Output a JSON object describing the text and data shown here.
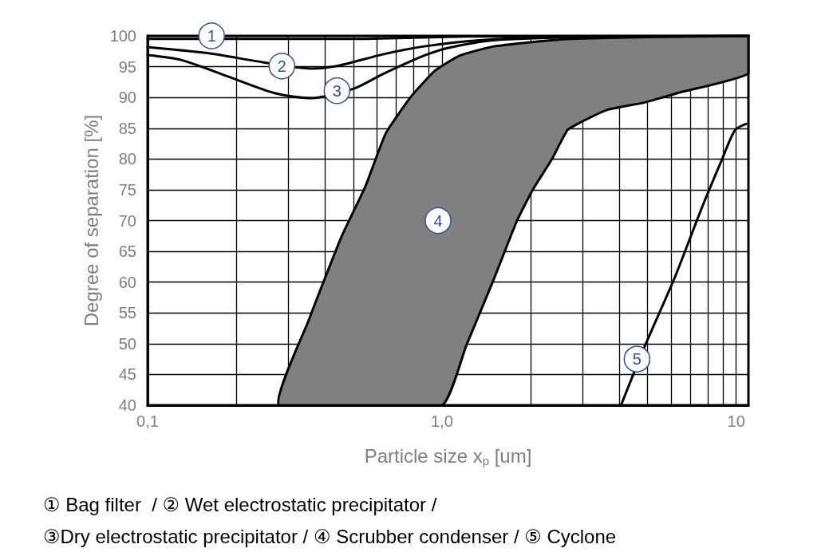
{
  "chart_data": {
    "type": "line",
    "xlabel": "Particle size x$_{p}$ [um]",
    "ylabel": "Degree of separation [%]",
    "log": "x",
    "grid": true,
    "marker": "none",
    "line_style": "solid",
    "xlim": [
      0.1,
      11
    ],
    "ylim": [
      40,
      100
    ],
    "xticks": [
      {
        "value": 0.1,
        "label": "0,1"
      },
      {
        "value": 0.2,
        "label": null
      },
      {
        "value": 0.3,
        "label": null
      },
      {
        "value": 0.4,
        "label": null
      },
      {
        "value": 0.5,
        "label": null
      },
      {
        "value": 0.6,
        "label": null
      },
      {
        "value": 0.7,
        "label": null
      },
      {
        "value": 0.8,
        "label": null
      },
      {
        "value": 0.9,
        "label": null
      },
      {
        "value": 1,
        "label": "1,0"
      },
      {
        "value": 2,
        "label": null
      },
      {
        "value": 3,
        "label": null
      },
      {
        "value": 4,
        "label": null
      },
      {
        "value": 5,
        "label": null
      },
      {
        "value": 6,
        "label": null
      },
      {
        "value": 7,
        "label": null
      },
      {
        "value": 8,
        "label": null
      },
      {
        "value": 9,
        "label": null
      },
      {
        "value": 10,
        "label": "10"
      }
    ],
    "yticks": [
      40,
      45,
      50,
      55,
      60,
      65,
      70,
      75,
      80,
      85,
      90,
      95,
      100
    ],
    "series": [
      {
        "color": "#000000",
        "x": [
          0.1,
          0.5,
          1.2,
          11
        ],
        "values": [
          99.5,
          99.5,
          99.9,
          100
        ]
      },
      {
        "color": "#000000",
        "x": [
          0.1,
          0.16,
          0.248,
          0.36,
          0.44,
          0.63,
          0.87,
          1.34,
          2.5,
          11
        ],
        "values": [
          98.2,
          97.2,
          95.7,
          94.7,
          95.1,
          97.0,
          98.3,
          99.3,
          99.8,
          100
        ]
      },
      {
        "color": "#000000",
        "x": [
          0.1,
          0.13,
          0.19,
          0.27,
          0.36,
          0.5,
          0.63,
          0.87,
          1.06,
          1.5,
          3,
          11
        ],
        "values": [
          96.9,
          96.1,
          93.3,
          90.7,
          89.9,
          91.4,
          93.8,
          96.8,
          98.1,
          99.3,
          99.8,
          100
        ]
      },
      {
        "type": "area",
        "color": "#808080",
        "x": [
          0.28,
          0.354,
          0.455,
          0.55,
          0.645,
          0.79,
          0.95,
          1.15,
          1.5,
          2.5,
          5,
          11,
          11,
          6.3,
          4.9,
          3.65,
          2.97,
          2.67,
          2.36,
          2.04,
          1.8,
          1.49,
          1.21,
          1.0
        ],
        "values": [
          40,
          54,
          67.3,
          75.6,
          84.2,
          90.3,
          94.4,
          96.8,
          98.3,
          99.4,
          99.8,
          100,
          93.9,
          90.7,
          89.2,
          88,
          86,
          84.7,
          79.9,
          75.1,
          70,
          60.1,
          49.7,
          40
        ]
      },
      {
        "color": "#000000",
        "x": [
          4.06,
          4.9,
          6.2,
          7.6,
          8.87,
          9.9,
          10.8
        ],
        "values": [
          40,
          49.7,
          60.9,
          71.8,
          79.5,
          84.7,
          85.7
        ]
      }
    ],
    "annotations": [
      {
        "text": "1",
        "x": 0.165,
        "y": 100
      },
      {
        "text": "2",
        "x": 0.286,
        "y": 95.1
      },
      {
        "text": "3",
        "x": 0.44,
        "y": 91.1
      },
      {
        "text": "4",
        "x": 0.97,
        "y": 70
      },
      {
        "text": "5",
        "x": 4.6,
        "y": 47.5
      },
      "① Bag filter  / ② Wet electrostatic precipitator /",
      "③Dry electrostatic precipitator / ④ Scrubber condenser / ⑤ Cyclone"
    ]
  }
}
